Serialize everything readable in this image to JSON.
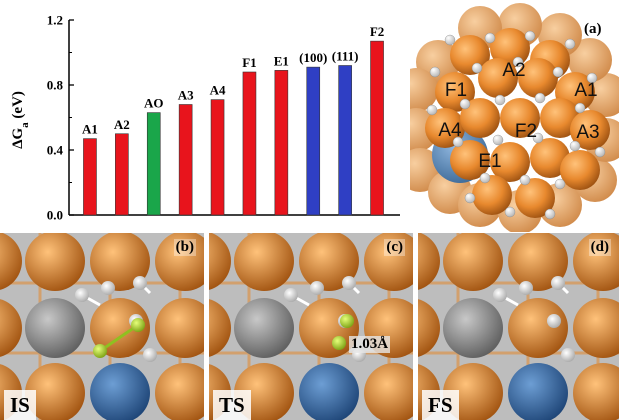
{
  "chart_data": {
    "type": "bar",
    "ylabel": "ΔG",
    "ylabel_sub": "a",
    "ylabel_unit": " (eV)",
    "ylim": [
      0,
      1.2
    ],
    "yticks": [
      "0.0",
      "0.4",
      "0.8",
      "1.2"
    ],
    "categories": [
      "A1",
      "A2",
      "AO",
      "A3",
      "A4",
      "F1",
      "E1",
      "(100)",
      "(111)",
      "F2"
    ],
    "values": [
      0.47,
      0.5,
      0.63,
      0.68,
      0.71,
      0.88,
      0.89,
      0.91,
      0.92,
      1.07
    ],
    "bar_colors": [
      "#e8141c",
      "#e8141c",
      "#1aa64a",
      "#e8141c",
      "#e8141c",
      "#e8141c",
      "#e8141c",
      "#2f3fc4",
      "#2f3fc4",
      "#e8141c"
    ],
    "grid": false,
    "legend": "none"
  },
  "cluster": {
    "tag": "(a)",
    "site_labels": [
      "A2",
      "F1",
      "A1",
      "A4",
      "F2",
      "A3",
      "E1"
    ],
    "colors": {
      "metal": "#e8892e",
      "core": "#5a86b8",
      "hydrogen": "#f4f4f4"
    }
  },
  "panels": [
    {
      "letter": "(b)",
      "state": "IS",
      "distance": ""
    },
    {
      "letter": "(c)",
      "state": "TS",
      "distance": "1.03Å"
    },
    {
      "letter": "(d)",
      "state": "FS",
      "distance": ""
    }
  ],
  "colors": {
    "copper": "#e8892e",
    "gray": "#8a8a8a",
    "blue": "#2c5f9c",
    "green": "#b5e02a",
    "white": "#ffffff"
  }
}
